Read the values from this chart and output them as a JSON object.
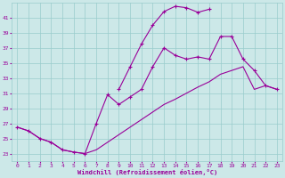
{
  "xlabel": "Windchill (Refroidissement éolien,°C)",
  "background_color": "#cce8e8",
  "grid_color": "#99cccc",
  "line_color": "#990099",
  "x_ticks": [
    0,
    1,
    2,
    3,
    4,
    5,
    6,
    7,
    8,
    9,
    10,
    11,
    12,
    13,
    14,
    15,
    16,
    17,
    18,
    19,
    20,
    21,
    22,
    23
  ],
  "y_ticks": [
    23,
    25,
    27,
    29,
    31,
    33,
    35,
    37,
    39,
    41
  ],
  "ylim": [
    22.0,
    43.0
  ],
  "xlim": [
    -0.5,
    23.5
  ],
  "series": [
    {
      "x": [
        0,
        1,
        2,
        3,
        4,
        5,
        6,
        7,
        8,
        9,
        10,
        11,
        12,
        13,
        14,
        15,
        16,
        17,
        18,
        19,
        20,
        21,
        22,
        23
      ],
      "y": [
        null,
        null,
        null,
        null,
        null,
        null,
        null,
        null,
        null,
        31.5,
        34.5,
        37.5,
        40.0,
        41.8,
        42.5,
        42.3,
        41.7,
        42.1,
        null,
        null,
        null,
        null,
        null,
        null
      ],
      "has_markers": true
    },
    {
      "x": [
        0,
        1,
        2,
        3,
        4,
        5,
        6,
        7,
        8,
        9,
        10,
        11,
        12,
        13,
        14,
        15,
        16,
        17,
        18,
        19,
        20,
        21,
        22,
        23
      ],
      "y": [
        26.5,
        26.0,
        25.0,
        24.5,
        23.5,
        23.2,
        23.0,
        27.0,
        30.8,
        29.5,
        30.5,
        31.5,
        34.5,
        37.0,
        36.0,
        35.5,
        35.8,
        35.5,
        38.5,
        38.5,
        35.5,
        34.0,
        32.0,
        31.5
      ],
      "has_markers": true
    },
    {
      "x": [
        0,
        1,
        2,
        3,
        4,
        5,
        6,
        7,
        8,
        9,
        10,
        11,
        12,
        13,
        14,
        15,
        16,
        17,
        18,
        19,
        20,
        21,
        22,
        23
      ],
      "y": [
        26.5,
        26.0,
        25.0,
        24.5,
        23.5,
        23.2,
        23.0,
        23.5,
        24.5,
        25.5,
        26.5,
        27.5,
        28.5,
        29.5,
        30.2,
        31.0,
        31.8,
        32.5,
        33.5,
        34.0,
        34.5,
        31.5,
        32.0,
        31.5
      ],
      "has_markers": false
    }
  ]
}
